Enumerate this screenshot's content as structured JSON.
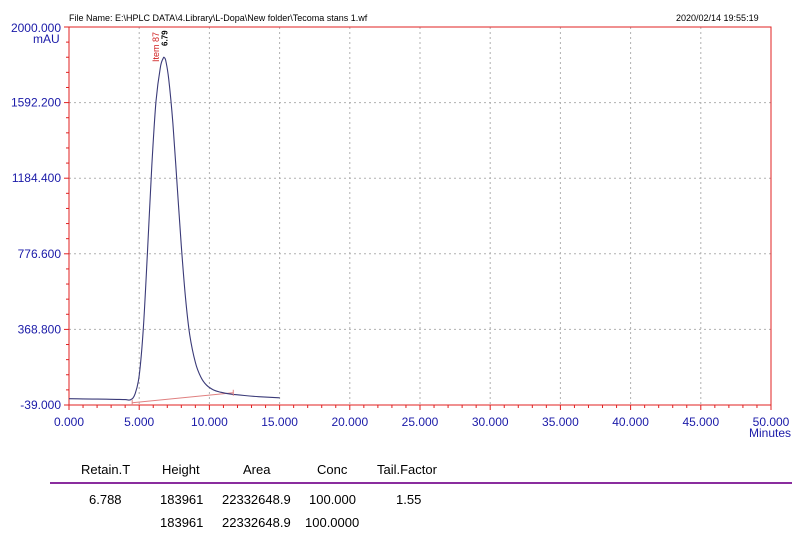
{
  "header": {
    "file_name": "File Name: E:\\HPLC DATA\\4.Library\\L-Dopa\\New folder\\Tecoma stans 1.wf",
    "timestamp": "2020/02/14 19:55:19"
  },
  "colors": {
    "frame": "#e02020",
    "axis_text": "#1a1aa8",
    "trace": "#3a3a78",
    "baseline": "#e08080",
    "peak_label": "#d02020",
    "grid": "#b0b0b0",
    "rule": "#8a2d9e"
  },
  "chart_data": {
    "type": "line",
    "ylabel": "mAU",
    "xlabel": "Minutes",
    "xlim": [
      0,
      50
    ],
    "ylim": [
      -39,
      2000
    ],
    "grid": true,
    "y_ticks": [
      "2000.000",
      "1592.200",
      "1184.400",
      "776.600",
      "368.800",
      "-39.000"
    ],
    "y_tick_values": [
      2000,
      1592.2,
      1184.4,
      776.6,
      368.8,
      -39
    ],
    "x_ticks": [
      "0.000",
      "5.000",
      "10.000",
      "15.000",
      "20.000",
      "25.000",
      "30.000",
      "35.000",
      "40.000",
      "45.000",
      "50.000"
    ],
    "x_tick_values": [
      0,
      5,
      10,
      15,
      20,
      25,
      30,
      35,
      40,
      45,
      50
    ],
    "series": [
      {
        "x": [
          0,
          1,
          2,
          3,
          4,
          4.4,
          4.7,
          5.0,
          5.3,
          5.6,
          5.9,
          6.2,
          6.5,
          6.7,
          6.79,
          6.9,
          7.1,
          7.4,
          7.7,
          8.0,
          8.3,
          8.6,
          9.0,
          9.4,
          9.8,
          10.3,
          10.8,
          11.5,
          12.5,
          13.5,
          15.0
        ],
        "y": [
          -5,
          -6,
          -7,
          -8,
          -10,
          -10,
          20,
          120,
          380,
          800,
          1250,
          1600,
          1780,
          1830,
          1835,
          1815,
          1720,
          1480,
          1150,
          820,
          540,
          340,
          190,
          110,
          68,
          42,
          30,
          20,
          12,
          6,
          0
        ]
      }
    ],
    "baseline": {
      "x": [
        4.5,
        11.7
      ],
      "y": [
        -27,
        27
      ]
    },
    "annotations": [
      {
        "label": "Item 87",
        "x": 6.55
      },
      {
        "label": "6.79",
        "x": 6.79
      }
    ]
  },
  "results_table": {
    "headers": [
      "Retain.T",
      "Height",
      "Area",
      "Conc",
      "Tail.Factor"
    ],
    "row": [
      "6.788",
      "183961",
      "22332648.9",
      "100.000",
      "1.55"
    ],
    "totals": [
      "183961",
      "22332648.9",
      "100.0000"
    ]
  }
}
